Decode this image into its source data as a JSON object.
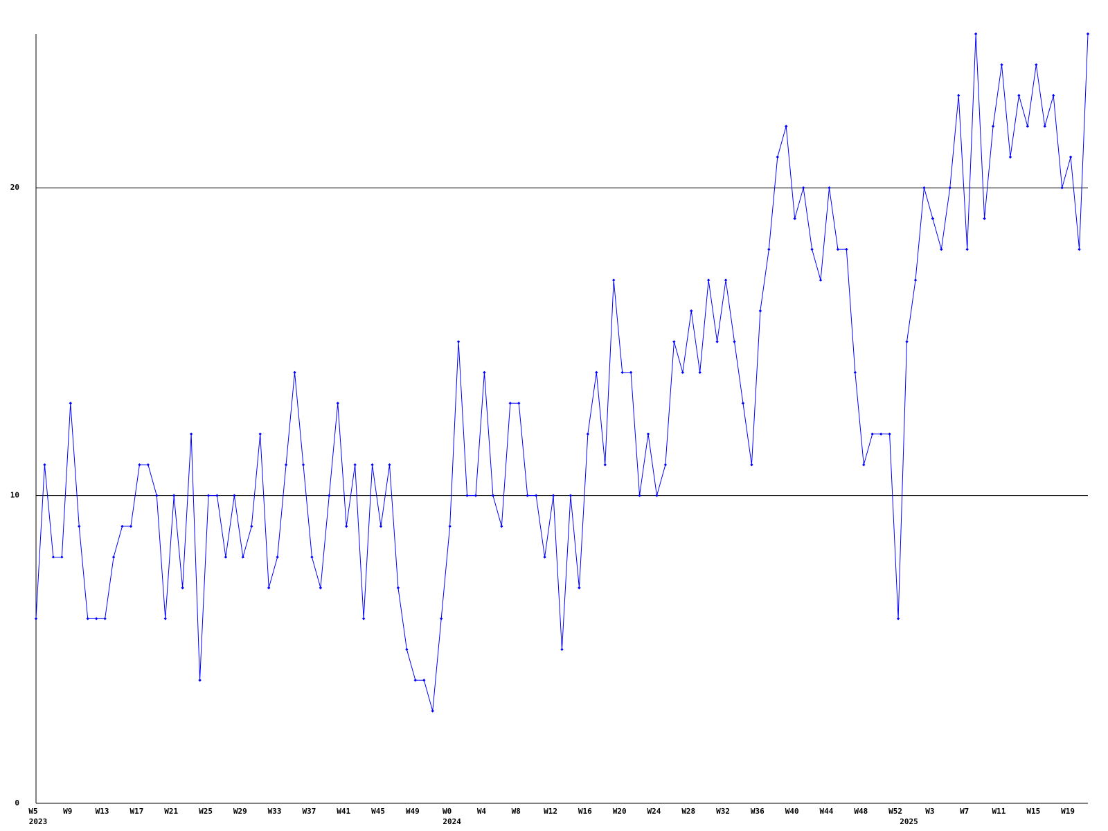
{
  "chart_data": {
    "type": "line",
    "color": "#0000ff",
    "grid": true,
    "ylim": [
      0,
      25
    ],
    "yticks": [
      0,
      10,
      20
    ],
    "categories": [
      "W5",
      null,
      null,
      null,
      "W9",
      null,
      null,
      null,
      "W13",
      null,
      null,
      null,
      "W17",
      null,
      null,
      null,
      "W21",
      null,
      null,
      null,
      "W25",
      null,
      null,
      null,
      "W29",
      null,
      null,
      null,
      "W33",
      null,
      null,
      null,
      "W37",
      null,
      null,
      null,
      "W41",
      null,
      null,
      null,
      "W45",
      null,
      null,
      null,
      "W49",
      null,
      null,
      null,
      "W0",
      null,
      null,
      null,
      "W4",
      null,
      null,
      null,
      "W8",
      null,
      null,
      null,
      "W12",
      null,
      null,
      null,
      "W16",
      null,
      null,
      null,
      "W20",
      null,
      null,
      null,
      "W24",
      null,
      null,
      null,
      "W28",
      null,
      null,
      null,
      "W32",
      null,
      null,
      null,
      "W36",
      null,
      null,
      null,
      "W40",
      null,
      null,
      null,
      "W44",
      null,
      null,
      null,
      "W48",
      null,
      null,
      null,
      "W52",
      null,
      null,
      null,
      "W3",
      null,
      null,
      null,
      "W7",
      null,
      null,
      null,
      "W11",
      null,
      null,
      null,
      "W15",
      null,
      null,
      null,
      "W19",
      null,
      null
    ],
    "category_groups": [
      "2023",
      null,
      null,
      null,
      null,
      null,
      null,
      null,
      null,
      null,
      null,
      null,
      null,
      null,
      null,
      null,
      null,
      null,
      null,
      null,
      null,
      null,
      null,
      null,
      null,
      null,
      null,
      null,
      null,
      null,
      null,
      null,
      null,
      null,
      null,
      null,
      null,
      null,
      null,
      null,
      null,
      null,
      null,
      null,
      null,
      null,
      null,
      null,
      "2024",
      null,
      null,
      null,
      null,
      null,
      null,
      null,
      null,
      null,
      null,
      null,
      null,
      null,
      null,
      null,
      null,
      null,
      null,
      null,
      null,
      null,
      null,
      null,
      null,
      null,
      null,
      null,
      null,
      null,
      null,
      null,
      null,
      null,
      null,
      null,
      null,
      null,
      null,
      null,
      null,
      null,
      null,
      null,
      null,
      null,
      null,
      null,
      null,
      null,
      null,
      null,
      null,
      "2025",
      null,
      null,
      null,
      null,
      null,
      null,
      null,
      null,
      null,
      null,
      null,
      null,
      null,
      null,
      null,
      null,
      null,
      null,
      null,
      null,
      null
    ],
    "values": [
      6,
      11,
      8,
      8,
      13,
      9,
      6,
      6,
      6,
      8,
      9,
      9,
      11,
      11,
      10,
      6,
      10,
      7,
      12,
      4,
      10,
      10,
      8,
      10,
      8,
      9,
      12,
      7,
      8,
      11,
      14,
      11,
      8,
      7,
      10,
      13,
      9,
      11,
      6,
      11,
      9,
      11,
      7,
      5,
      4,
      4,
      3,
      6,
      9,
      15,
      10,
      10,
      14,
      10,
      9,
      13,
      13,
      10,
      10,
      8,
      10,
      5,
      10,
      7,
      12,
      14,
      11,
      17,
      14,
      14,
      10,
      12,
      10,
      11,
      15,
      14,
      16,
      14,
      17,
      15,
      17,
      15,
      13,
      11,
      16,
      18,
      21,
      22,
      19,
      20,
      18,
      17,
      20,
      18,
      18,
      14,
      11,
      12,
      12,
      12,
      6,
      15,
      17,
      20,
      19,
      18,
      20,
      23,
      18,
      25,
      19,
      22,
      24,
      21,
      23,
      22,
      24,
      22,
      23,
      20,
      21,
      18,
      25
    ]
  }
}
